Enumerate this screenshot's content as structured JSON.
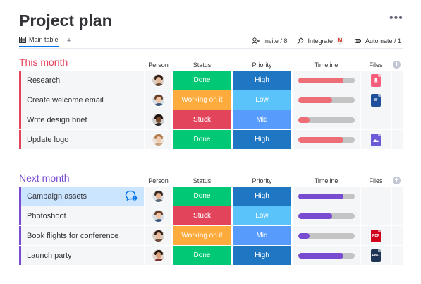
{
  "header": {
    "title": "Project plan"
  },
  "tabs": {
    "main_label": "Main table",
    "add_label": "+"
  },
  "actions": {
    "invite_label": "Invite / 8",
    "integrate_label": "Integrate",
    "gmail_letter": "M",
    "automate_label": "Automate / 1"
  },
  "columns": {
    "person": "Person",
    "status": "Status",
    "priority": "Priority",
    "timeline": "Timeline",
    "files": "Files",
    "add": "+"
  },
  "colors": {
    "done": "#00c875",
    "working": "#fdab3d",
    "stuck": "#e2445c",
    "high": "#1f76c2",
    "low": "#5ac4fa",
    "mid": "#579bfc",
    "this_month": "#e2445c",
    "next_month": "#784bd1",
    "timeline_this": "#ed6e77",
    "timeline_next": "#784bd1"
  },
  "groups": [
    {
      "title": "This month",
      "rows": [
        {
          "name": "Research",
          "status": "Done",
          "priority": "High",
          "timeline_fill": 0.8,
          "file": "mic-file-icon",
          "avatar": "woman-dark-hair"
        },
        {
          "name": "Create welcome email",
          "status": "Working on it",
          "priority": "Low",
          "timeline_fill": 0.6,
          "file": "word-file-icon",
          "file_letter": "W",
          "avatar": "woman-brown-hair"
        },
        {
          "name": "Write design brief",
          "status": "Stuck",
          "priority": "Mid",
          "timeline_fill": 0.2,
          "file": "",
          "avatar": "man-dark-skin"
        },
        {
          "name": "Update logo",
          "status": "Done",
          "priority": "High",
          "timeline_fill": 0.8,
          "file": "image-file-icon",
          "avatar": "woman-light-hair"
        }
      ]
    },
    {
      "title": "Next month",
      "rows": [
        {
          "name": "Campaign assets",
          "status": "Done",
          "priority": "High",
          "timeline_fill": 0.8,
          "file": "",
          "avatar": "man-beard",
          "selected": true
        },
        {
          "name": "Photoshoot",
          "status": "Stuck",
          "priority": "Low",
          "timeline_fill": 0.6,
          "file": "",
          "avatar": "woman-brown-hair"
        },
        {
          "name": "Book flights for conference",
          "status": "Working on it",
          "priority": "Mid",
          "timeline_fill": 0.2,
          "file": "pdf-file-icon",
          "file_letter": "PDF",
          "avatar": "woman-dark-hair"
        },
        {
          "name": "Launch party",
          "status": "Done",
          "priority": "High",
          "timeline_fill": 0.8,
          "file": "png-file-icon",
          "file_letter": "PNG",
          "avatar": "man-dark-hair"
        }
      ]
    }
  ]
}
